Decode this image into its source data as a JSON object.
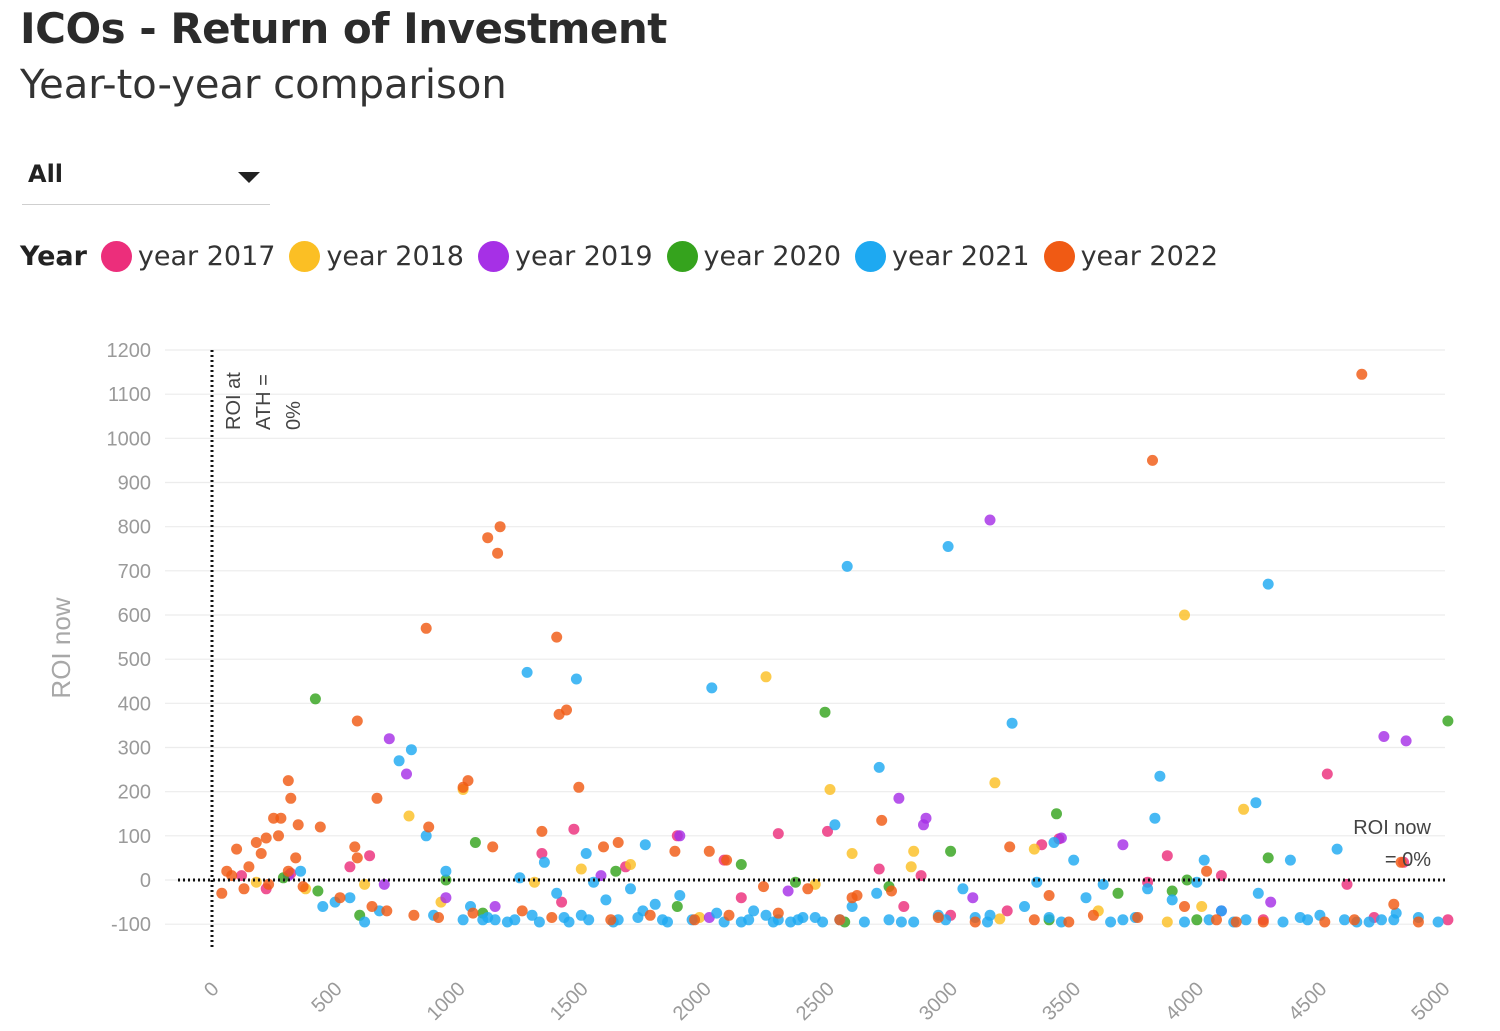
{
  "header": {
    "title": "ICOs - Return of Investment",
    "subtitle": "Year-to-year comparison"
  },
  "filter": {
    "value": "All"
  },
  "legend": {
    "title": "Year",
    "items": [
      {
        "label": "year 2017",
        "color": "#ec2e7b"
      },
      {
        "label": "year 2018",
        "color": "#fbbf24"
      },
      {
        "label": "year 2019",
        "color": "#a630e6"
      },
      {
        "label": "year 2020",
        "color": "#35a31d"
      },
      {
        "label": "year 2021",
        "color": "#1ea9f1"
      },
      {
        "label": "year 2022",
        "color": "#f05a14"
      }
    ]
  },
  "chart_data": {
    "type": "scatter",
    "title": "ICOs - Return of Investment",
    "subtitle": "Year-to-year comparison",
    "xlabel": "",
    "ylabel": "ROI now",
    "xlim": [
      -150,
      5080
    ],
    "ylim": [
      -160,
      1200
    ],
    "x_ticks": [
      0,
      500,
      1000,
      1500,
      2000,
      2500,
      3000,
      3500,
      4000,
      4500,
      5000
    ],
    "y_ticks": [
      -100,
      0,
      100,
      200,
      300,
      400,
      500,
      600,
      700,
      800,
      900,
      1000,
      1100,
      1200
    ],
    "grid": "horizontal",
    "reference_lines": [
      {
        "orientation": "vertical",
        "value": 0,
        "style": "dotted",
        "label_lines": [
          "ROI at",
          "ATH =",
          "0%"
        ]
      },
      {
        "orientation": "horizontal",
        "value": 0,
        "style": "dotted",
        "label_lines": [
          "ROI now",
          "= 0%"
        ]
      }
    ],
    "series": [
      {
        "name": "year 2017",
        "color": "#ec2e7b",
        "points": [
          [
            1470,
            115
          ],
          [
            1890,
            100
          ],
          [
            2300,
            105
          ],
          [
            2500,
            110
          ],
          [
            2710,
            25
          ],
          [
            2810,
            -60
          ],
          [
            2880,
            10
          ],
          [
            3230,
            -70
          ],
          [
            3370,
            80
          ],
          [
            3440,
            93
          ],
          [
            3800,
            -5
          ],
          [
            3880,
            55
          ],
          [
            4100,
            10
          ],
          [
            4270,
            -90
          ],
          [
            4530,
            240
          ],
          [
            4610,
            -10
          ],
          [
            4840,
            40
          ],
          [
            5020,
            -90
          ],
          [
            1680,
            30
          ],
          [
            2080,
            45
          ],
          [
            640,
            55
          ],
          [
            560,
            30
          ],
          [
            320,
            15
          ],
          [
            120,
            10
          ],
          [
            220,
            -20
          ],
          [
            1340,
            60
          ],
          [
            1420,
            -50
          ],
          [
            2150,
            -40
          ],
          [
            3000,
            -80
          ],
          [
            4720,
            -85
          ]
        ]
      },
      {
        "name": "year 2018",
        "color": "#fbbf24",
        "points": [
          [
            2250,
            460
          ],
          [
            2510,
            205
          ],
          [
            3180,
            220
          ],
          [
            3950,
            600
          ],
          [
            4190,
            160
          ],
          [
            2600,
            60
          ],
          [
            2850,
            65
          ],
          [
            3340,
            70
          ],
          [
            1500,
            25
          ],
          [
            1700,
            35
          ],
          [
            1020,
            205
          ],
          [
            930,
            -50
          ],
          [
            800,
            145
          ],
          [
            380,
            -20
          ],
          [
            2840,
            30
          ],
          [
            3880,
            -95
          ],
          [
            3200,
            -88
          ],
          [
            1310,
            -5
          ],
          [
            2450,
            -10
          ],
          [
            4020,
            -60
          ],
          [
            620,
            -10
          ],
          [
            180,
            -5
          ],
          [
            1980,
            -85
          ],
          [
            3600,
            -70
          ]
        ]
      },
      {
        "name": "year 2019",
        "color": "#a630e6",
        "points": [
          [
            720,
            320
          ],
          [
            790,
            240
          ],
          [
            3160,
            815
          ],
          [
            4760,
            325
          ],
          [
            4850,
            315
          ],
          [
            2790,
            185
          ],
          [
            2900,
            140
          ],
          [
            2890,
            125
          ],
          [
            1900,
            100
          ],
          [
            3450,
            95
          ],
          [
            3700,
            80
          ],
          [
            700,
            -10
          ],
          [
            4300,
            -50
          ],
          [
            2340,
            -25
          ],
          [
            310,
            10
          ],
          [
            3090,
            -40
          ],
          [
            1580,
            10
          ],
          [
            950,
            -40
          ],
          [
            4100,
            -70
          ],
          [
            1150,
            -60
          ],
          [
            2020,
            -85
          ]
        ]
      },
      {
        "name": "year 2020",
        "color": "#35a31d",
        "points": [
          [
            420,
            410
          ],
          [
            2490,
            380
          ],
          [
            5020,
            360
          ],
          [
            3430,
            150
          ],
          [
            3000,
            65
          ],
          [
            4290,
            50
          ],
          [
            2150,
            35
          ],
          [
            1640,
            20
          ],
          [
            1070,
            85
          ],
          [
            430,
            -25
          ],
          [
            2370,
            -5
          ],
          [
            2570,
            -95
          ],
          [
            3680,
            -30
          ],
          [
            3900,
            -25
          ],
          [
            1100,
            -75
          ],
          [
            950,
            0
          ],
          [
            3400,
            -90
          ],
          [
            4000,
            -90
          ],
          [
            600,
            -80
          ],
          [
            1890,
            -60
          ],
          [
            2750,
            -15
          ],
          [
            290,
            5
          ],
          [
            3960,
            0
          ]
        ]
      },
      {
        "name": "year 2021",
        "color": "#1ea9f1",
        "points": [
          [
            2580,
            710
          ],
          [
            2990,
            755
          ],
          [
            4290,
            670
          ],
          [
            1280,
            470
          ],
          [
            1480,
            455
          ],
          [
            2030,
            435
          ],
          [
            3250,
            355
          ],
          [
            810,
            295
          ],
          [
            760,
            270
          ],
          [
            2710,
            255
          ],
          [
            3850,
            235
          ],
          [
            4240,
            175
          ],
          [
            3830,
            140
          ],
          [
            1520,
            60
          ],
          [
            1760,
            80
          ],
          [
            870,
            100
          ],
          [
            3420,
            85
          ],
          [
            4030,
            45
          ],
          [
            4380,
            45
          ],
          [
            3500,
            45
          ],
          [
            4570,
            70
          ],
          [
            2530,
            125
          ],
          [
            3160,
            -80
          ],
          [
            2980,
            -90
          ],
          [
            3100,
            -85
          ],
          [
            3550,
            -40
          ],
          [
            4100,
            -70
          ],
          [
            4500,
            -80
          ],
          [
            4810,
            -75
          ],
          [
            4980,
            -95
          ],
          [
            1400,
            -30
          ],
          [
            1600,
            -45
          ],
          [
            1800,
            -55
          ],
          [
            2200,
            -70
          ],
          [
            2400,
            -85
          ],
          [
            2600,
            -60
          ],
          [
            2800,
            -95
          ],
          [
            3300,
            -60
          ],
          [
            3700,
            -90
          ],
          [
            3900,
            -45
          ],
          [
            4200,
            -90
          ],
          [
            4420,
            -85
          ],
          [
            4700,
            -95
          ],
          [
            1250,
            5
          ],
          [
            1350,
            40
          ],
          [
            1550,
            -5
          ],
          [
            1700,
            -20
          ],
          [
            1900,
            -35
          ],
          [
            2050,
            -75
          ],
          [
            2300,
            -90
          ],
          [
            2700,
            -30
          ],
          [
            3050,
            -20
          ],
          [
            3350,
            -5
          ],
          [
            3620,
            -10
          ],
          [
            3800,
            -20
          ],
          [
            4000,
            -5
          ],
          [
            4250,
            -30
          ],
          [
            4600,
            -90
          ],
          [
            4800,
            -90
          ],
          [
            500,
            -50
          ],
          [
            560,
            -40
          ],
          [
            680,
            -70
          ],
          [
            900,
            -80
          ],
          [
            950,
            20
          ],
          [
            1050,
            -60
          ],
          [
            1100,
            -90
          ],
          [
            1150,
            -90
          ],
          [
            1200,
            -95
          ],
          [
            1300,
            -80
          ],
          [
            1450,
            -95
          ],
          [
            1500,
            -80
          ],
          [
            1650,
            -90
          ],
          [
            1750,
            -70
          ],
          [
            1850,
            -95
          ],
          [
            1950,
            -90
          ],
          [
            2150,
            -95
          ],
          [
            2250,
            -80
          ],
          [
            2350,
            -95
          ],
          [
            2450,
            -85
          ],
          [
            2550,
            -90
          ],
          [
            2650,
            -95
          ],
          [
            2750,
            -90
          ],
          [
            2850,
            -95
          ],
          [
            2950,
            -80
          ],
          [
            3150,
            -95
          ],
          [
            3400,
            -85
          ],
          [
            3450,
            -95
          ],
          [
            3650,
            -95
          ],
          [
            3750,
            -85
          ],
          [
            3950,
            -95
          ],
          [
            4050,
            -90
          ],
          [
            4150,
            -95
          ],
          [
            4350,
            -95
          ],
          [
            4450,
            -90
          ],
          [
            4650,
            -95
          ],
          [
            4750,
            -90
          ],
          [
            4900,
            -85
          ],
          [
            360,
            20
          ],
          [
            450,
            -60
          ],
          [
            620,
            -95
          ],
          [
            1020,
            -90
          ],
          [
            1120,
            -85
          ],
          [
            1230,
            -90
          ],
          [
            1330,
            -95
          ],
          [
            1430,
            -85
          ],
          [
            1530,
            -90
          ],
          [
            1630,
            -95
          ],
          [
            1730,
            -85
          ],
          [
            1830,
            -90
          ],
          [
            2080,
            -95
          ],
          [
            2180,
            -90
          ],
          [
            2280,
            -95
          ],
          [
            2380,
            -90
          ],
          [
            2480,
            -95
          ]
        ]
      },
      {
        "name": "year 2022",
        "color": "#f05a14",
        "points": [
          [
            4670,
            1145
          ],
          [
            3820,
            950
          ],
          [
            1170,
            800
          ],
          [
            1120,
            775
          ],
          [
            1160,
            740
          ],
          [
            870,
            570
          ],
          [
            1400,
            550
          ],
          [
            1410,
            375
          ],
          [
            1440,
            385
          ],
          [
            590,
            360
          ],
          [
            1490,
            210
          ],
          [
            1040,
            225
          ],
          [
            1020,
            210
          ],
          [
            310,
            225
          ],
          [
            320,
            185
          ],
          [
            670,
            185
          ],
          [
            350,
            125
          ],
          [
            880,
            120
          ],
          [
            250,
            140
          ],
          [
            280,
            140
          ],
          [
            220,
            95
          ],
          [
            580,
            75
          ],
          [
            590,
            50
          ],
          [
            440,
            120
          ],
          [
            1140,
            75
          ],
          [
            1340,
            110
          ],
          [
            1590,
            75
          ],
          [
            2020,
            65
          ],
          [
            2090,
            45
          ],
          [
            2720,
            135
          ],
          [
            3240,
            75
          ],
          [
            3400,
            -35
          ],
          [
            3950,
            -60
          ],
          [
            4040,
            20
          ],
          [
            4800,
            -55
          ],
          [
            4830,
            40
          ],
          [
            1650,
            85
          ],
          [
            1880,
            65
          ],
          [
            2420,
            -20
          ],
          [
            2620,
            -35
          ],
          [
            2760,
            -25
          ],
          [
            3480,
            -95
          ],
          [
            4160,
            -95
          ],
          [
            4270,
            -95
          ],
          [
            100,
            70
          ],
          [
            150,
            30
          ],
          [
            200,
            60
          ],
          [
            60,
            20
          ],
          [
            80,
            10
          ],
          [
            270,
            100
          ],
          [
            180,
            85
          ],
          [
            130,
            -20
          ],
          [
            40,
            -30
          ],
          [
            230,
            -10
          ],
          [
            310,
            20
          ],
          [
            340,
            50
          ],
          [
            370,
            -15
          ],
          [
            520,
            -40
          ],
          [
            650,
            -60
          ],
          [
            710,
            -70
          ],
          [
            820,
            -80
          ],
          [
            920,
            -85
          ],
          [
            1060,
            -75
          ],
          [
            1260,
            -70
          ],
          [
            1380,
            -85
          ],
          [
            1620,
            -90
          ],
          [
            1780,
            -80
          ],
          [
            1960,
            -90
          ],
          [
            2100,
            -80
          ],
          [
            2300,
            -75
          ],
          [
            2550,
            -90
          ],
          [
            2950,
            -85
          ],
          [
            3100,
            -95
          ],
          [
            3340,
            -90
          ],
          [
            3580,
            -80
          ],
          [
            3760,
            -85
          ],
          [
            4080,
            -90
          ],
          [
            4520,
            -95
          ],
          [
            4640,
            -90
          ],
          [
            4900,
            -95
          ],
          [
            2240,
            -15
          ],
          [
            2600,
            -40
          ]
        ]
      }
    ]
  }
}
